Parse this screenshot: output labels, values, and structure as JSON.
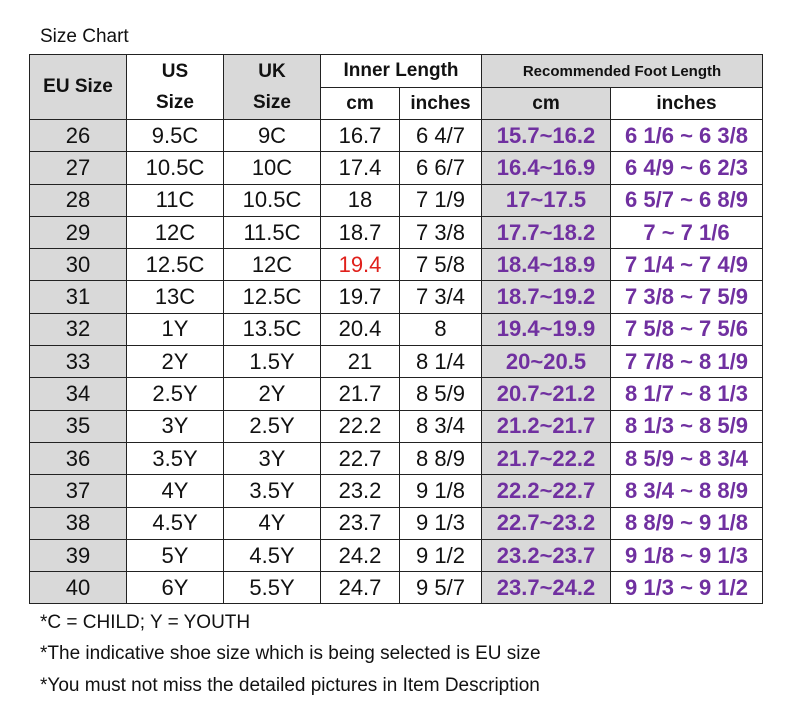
{
  "title": "Size Chart",
  "headers": {
    "eu": "EU Size",
    "us_line1": "US",
    "us_line2": "Size",
    "uk_line1": "UK",
    "uk_line2": "Size",
    "inner_length": "Inner Length",
    "recommended": "Recommended Foot Length",
    "cm": "cm",
    "inches": "inches"
  },
  "rows": [
    {
      "eu": "26",
      "us": "9.5C",
      "uk": "9C",
      "inner_cm": "16.7",
      "inner_in": "6 4/7",
      "rec_cm": "15.7~16.2",
      "rec_in": "6 1/6 ~ 6 3/8"
    },
    {
      "eu": "27",
      "us": "10.5C",
      "uk": "10C",
      "inner_cm": "17.4",
      "inner_in": "6 6/7",
      "rec_cm": "16.4~16.9",
      "rec_in": "6 4/9 ~ 6 2/3"
    },
    {
      "eu": "28",
      "us": "11C",
      "uk": "10.5C",
      "inner_cm": "18",
      "inner_in": "7 1/9",
      "rec_cm": "17~17.5",
      "rec_in": "6 5/7 ~ 6 8/9"
    },
    {
      "eu": "29",
      "us": "12C",
      "uk": "11.5C",
      "inner_cm": "18.7",
      "inner_in": "7 3/8",
      "rec_cm": "17.7~18.2",
      "rec_in": "7 ~ 7 1/6"
    },
    {
      "eu": "30",
      "us": "12.5C",
      "uk": "12C",
      "inner_cm": "19.4",
      "inner_in": "7 5/8",
      "rec_cm": "18.4~18.9",
      "rec_in": "7 1/4 ~ 7 4/9"
    },
    {
      "eu": "31",
      "us": "13C",
      "uk": "12.5C",
      "inner_cm": "19.7",
      "inner_in": "7 3/4",
      "rec_cm": "18.7~19.2",
      "rec_in": "7 3/8 ~ 7 5/9"
    },
    {
      "eu": "32",
      "us": "1Y",
      "uk": "13.5C",
      "inner_cm": "20.4",
      "inner_in": "8",
      "rec_cm": "19.4~19.9",
      "rec_in": "7 5/8 ~ 7 5/6"
    },
    {
      "eu": "33",
      "us": "2Y",
      "uk": "1.5Y",
      "inner_cm": "21",
      "inner_in": "8 1/4",
      "rec_cm": "20~20.5",
      "rec_in": "7 7/8 ~ 8 1/9"
    },
    {
      "eu": "34",
      "us": "2.5Y",
      "uk": "2Y",
      "inner_cm": "21.7",
      "inner_in": "8 5/9",
      "rec_cm": "20.7~21.2",
      "rec_in": "8 1/7 ~ 8 1/3"
    },
    {
      "eu": "35",
      "us": "3Y",
      "uk": "2.5Y",
      "inner_cm": "22.2",
      "inner_in": "8 3/4",
      "rec_cm": "21.2~21.7",
      "rec_in": "8 1/3 ~ 8 5/9"
    },
    {
      "eu": "36",
      "us": "3.5Y",
      "uk": "3Y",
      "inner_cm": "22.7",
      "inner_in": "8 8/9",
      "rec_cm": "21.7~22.2",
      "rec_in": "8 5/9 ~ 8 3/4"
    },
    {
      "eu": "37",
      "us": "4Y",
      "uk": "3.5Y",
      "inner_cm": "23.2",
      "inner_in": "9 1/8",
      "rec_cm": "22.2~22.7",
      "rec_in": "8 3/4 ~ 8 8/9"
    },
    {
      "eu": "38",
      "us": "4.5Y",
      "uk": "4Y",
      "inner_cm": "23.7",
      "inner_in": "9 1/3",
      "rec_cm": "22.7~23.2",
      "rec_in": "8 8/9 ~ 9 1/8"
    },
    {
      "eu": "39",
      "us": "5Y",
      "uk": "4.5Y",
      "inner_cm": "24.2",
      "inner_in": "9 1/2",
      "rec_cm": "23.2~23.7",
      "rec_in": "9 1/8 ~ 9 1/3"
    },
    {
      "eu": "40",
      "us": "6Y",
      "uk": "5.5Y",
      "inner_cm": "24.7",
      "inner_in": "9 5/7",
      "rec_cm": "23.7~24.2",
      "rec_in": "9 1/3 ~ 9 1/2"
    }
  ],
  "highlighted_cell": {
    "row_eu": "30",
    "column": "inner_cm"
  },
  "notes": [
    "*C = CHILD; Y = YOUTH",
    "*The indicative shoe size which is being selected is EU size",
    "*You must not miss the detailed pictures in Item Description"
  ],
  "colors": {
    "header_gray": "#d9d9d9",
    "recommended_text": "#7030a0",
    "highlight_text": "#e0201b"
  }
}
